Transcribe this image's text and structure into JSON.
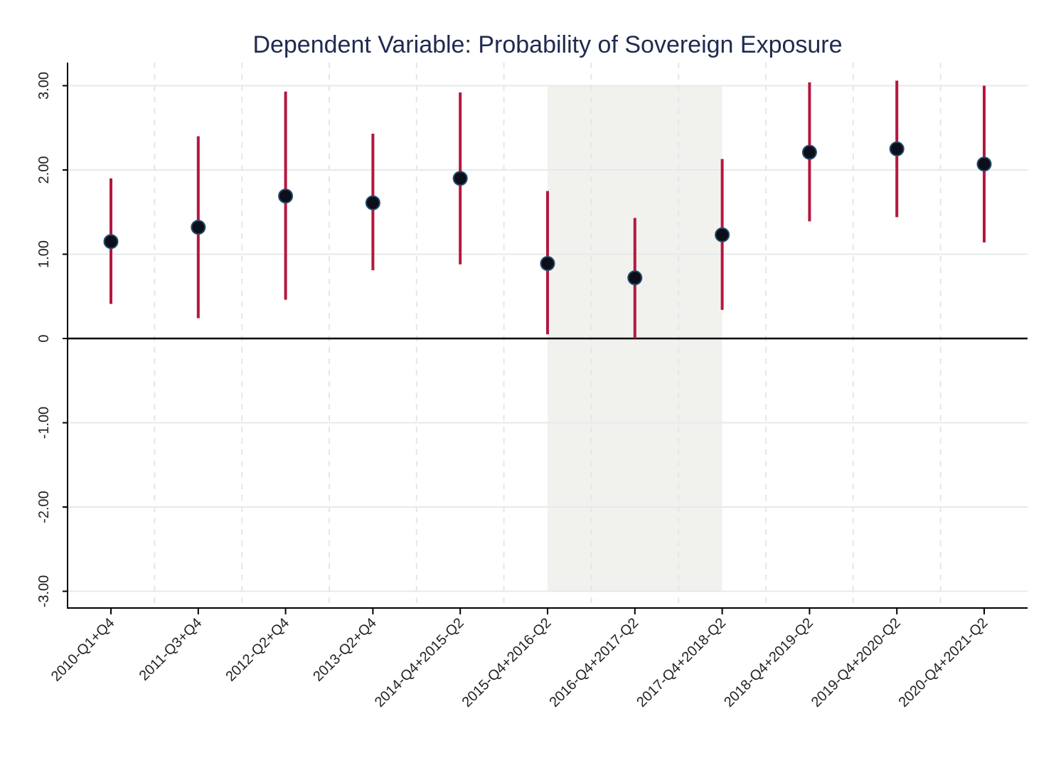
{
  "chart_data": {
    "type": "scatter",
    "title": "Dependent Variable: Probability of Sovereign Exposure",
    "xlabel": "",
    "ylabel": "",
    "ylim": [
      -3.2,
      3.25
    ],
    "yticks": [
      3,
      2,
      1,
      0,
      -1,
      -2,
      -3
    ],
    "ytick_labels": [
      "3.00",
      "2.00",
      "1.00",
      "0",
      "-1.00",
      "-2.00",
      "-3.00"
    ],
    "categories": [
      "2010-Q1+Q4",
      "2011-Q3+Q4",
      "2012-Q2+Q4",
      "2013-Q2+Q4",
      "2014-Q4+2015-Q2",
      "2015-Q4+2016-Q2",
      "2016-Q4+2017-Q2",
      "2017-Q4+2018-Q2",
      "2018-Q4+2019-Q2",
      "2019-Q4+2020-Q2",
      "2020-Q4+2021-Q2"
    ],
    "values": [
      1.15,
      1.32,
      1.69,
      1.61,
      1.9,
      0.89,
      0.72,
      1.23,
      2.21,
      2.25,
      2.07
    ],
    "ci_lower": [
      0.41,
      0.24,
      0.46,
      0.81,
      0.88,
      0.05,
      0.0,
      0.34,
      1.39,
      1.44,
      1.14
    ],
    "ci_upper": [
      1.9,
      2.4,
      2.93,
      2.43,
      2.92,
      1.75,
      1.43,
      2.13,
      3.04,
      3.06,
      3.0
    ],
    "shaded_region": {
      "from_category": "2015-Q4+2016-Q2",
      "to_category": "2017-Q4+2018-Q2",
      "y_range": [
        -3,
        3
      ]
    },
    "reference_line_y": 0,
    "grid": true,
    "colors": {
      "point": "#0a0f1a",
      "ci": "#b5173f",
      "shade": "#f1f2ee",
      "title": "#1f2a4f"
    }
  }
}
